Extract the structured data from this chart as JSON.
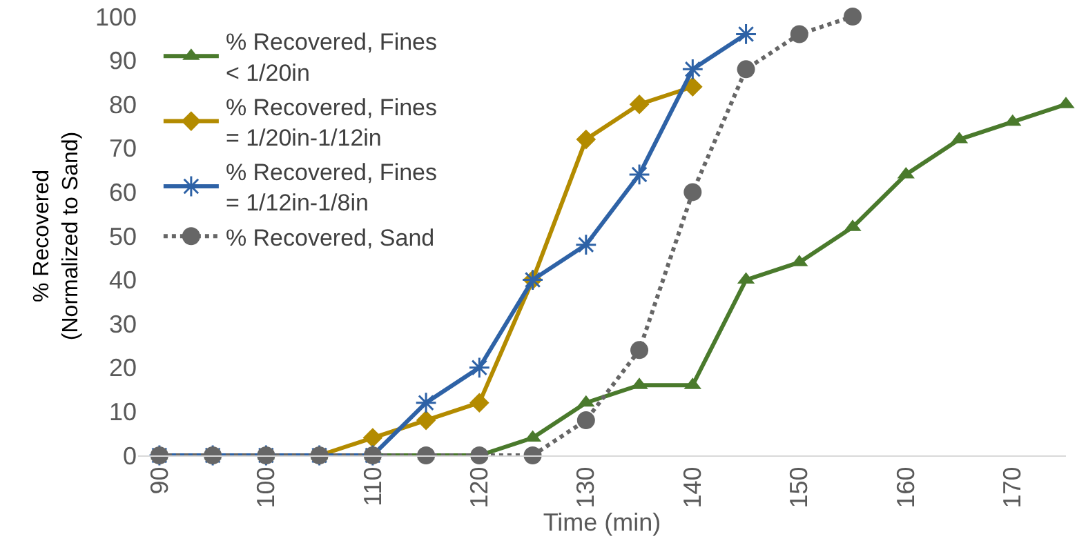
{
  "chart_data": {
    "type": "line",
    "xlabel": "Time (min)",
    "ylabel": "% Recovered (Normalized to Sand)",
    "xlim": [
      88,
      175
    ],
    "xticks": [
      90,
      100,
      110,
      120,
      130,
      140,
      150,
      160,
      170
    ],
    "ylim": [
      0,
      100
    ],
    "yticks": [
      0,
      10,
      20,
      30,
      40,
      50,
      60,
      70,
      80,
      90,
      100
    ],
    "grid": false,
    "legend": "top left",
    "series": [
      {
        "name": "% Recovered, Fines < 1/20in",
        "color": "#4a7a2c",
        "marker": "triangle",
        "line_style": "solid",
        "x": [
          90,
          95,
          100,
          105,
          110,
          115,
          120,
          125,
          130,
          135,
          140,
          145,
          150,
          155,
          160,
          165,
          170,
          175
        ],
        "values": [
          0,
          0,
          0,
          0,
          0,
          0,
          0,
          4,
          12,
          16,
          16,
          40,
          44,
          52,
          64,
          72,
          76,
          80
        ]
      },
      {
        "name": "% Recovered, Fines = 1/20in-1/12in",
        "color": "#b38b00",
        "marker": "diamond",
        "line_style": "solid",
        "x": [
          100,
          105,
          110,
          115,
          120,
          125,
          130,
          135,
          140
        ],
        "values": [
          0,
          0,
          4,
          8,
          12,
          40,
          72,
          80,
          84
        ]
      },
      {
        "name": "% Recovered, Fines = 1/12in-1/8in",
        "color": "#2e62a6",
        "marker": "cross",
        "line_style": "solid",
        "x": [
          90,
          95,
          100,
          105,
          110,
          115,
          120,
          125,
          130,
          135,
          140,
          145
        ],
        "values": [
          0,
          0,
          0,
          0,
          0,
          12,
          20,
          40,
          48,
          64,
          88,
          96
        ]
      },
      {
        "name": "% Recovered, Sand",
        "color": "#666666",
        "marker": "circle",
        "line_style": "dotted",
        "x": [
          90,
          95,
          100,
          105,
          110,
          115,
          120,
          125,
          130,
          135,
          140,
          145,
          150,
          155
        ],
        "values": [
          0,
          0,
          0,
          0,
          0,
          0,
          0,
          0,
          8,
          24,
          60,
          88,
          96,
          100
        ]
      }
    ]
  }
}
